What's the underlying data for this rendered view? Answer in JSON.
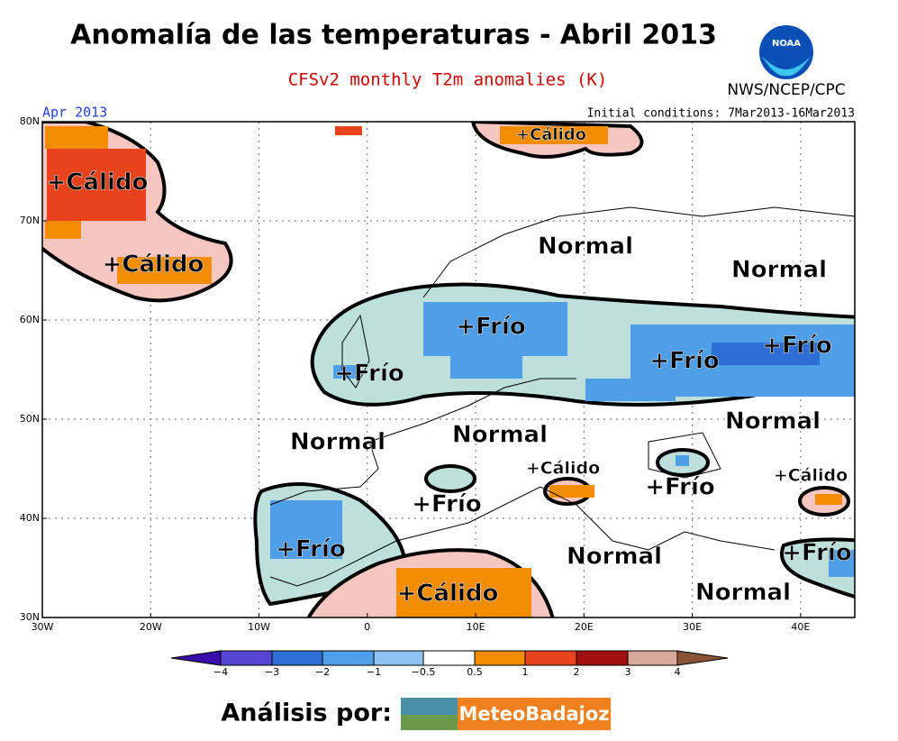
{
  "header": {
    "title": "Anomalía de las temperaturas - Abril 2013",
    "subtitle": "CFSv2 monthly T2m anomalies (K)",
    "agency": "NWS/NCEP/CPC",
    "logo": "NOAA",
    "month": "Apr 2013",
    "initial_conditions": "Initial conditions: 7Mar2013-16Mar2013"
  },
  "map": {
    "lon_ticks": [
      {
        "value": -30,
        "label": "30W"
      },
      {
        "value": -20,
        "label": "20W"
      },
      {
        "value": -10,
        "label": "10W"
      },
      {
        "value": 0,
        "label": "0"
      },
      {
        "value": 10,
        "label": "10E"
      },
      {
        "value": 20,
        "label": "20E"
      },
      {
        "value": 30,
        "label": "30E"
      },
      {
        "value": 40,
        "label": "40E"
      }
    ],
    "lat_ticks": [
      {
        "value": 30,
        "label": "30N"
      },
      {
        "value": 40,
        "label": "40N"
      },
      {
        "value": 50,
        "label": "50N"
      },
      {
        "value": 60,
        "label": "60N"
      },
      {
        "value": 70,
        "label": "70N"
      },
      {
        "value": 80,
        "label": "80N"
      }
    ],
    "region_labels": [
      "+Cálido",
      "+Cálido",
      "+Cálido",
      "Normal",
      "Normal",
      "+Frío",
      "+Frío",
      "+Frío",
      "+Frío",
      "Normal",
      "Normal",
      "Normal",
      "+Cálido",
      "+Cálido",
      "+Frío",
      "+Frío",
      "+Frío",
      "Normal",
      "+Frío",
      "Normal",
      "+Cálido"
    ]
  },
  "colorbar": {
    "labels": [
      "−4",
      "−3",
      "−2",
      "−1",
      "−0.5",
      "0.5",
      "1",
      "2",
      "3",
      "4"
    ],
    "colors": [
      "#3a0ea8",
      "#5546d6",
      "#2e6fd6",
      "#4f9ee8",
      "#8cc3f2",
      "#ffffff",
      "#f28c00",
      "#e8431a",
      "#a01010",
      "#d8a99a",
      "#8a5236"
    ]
  },
  "footer": {
    "label": "Análisis por:",
    "brand": "MeteoBadajoz"
  }
}
